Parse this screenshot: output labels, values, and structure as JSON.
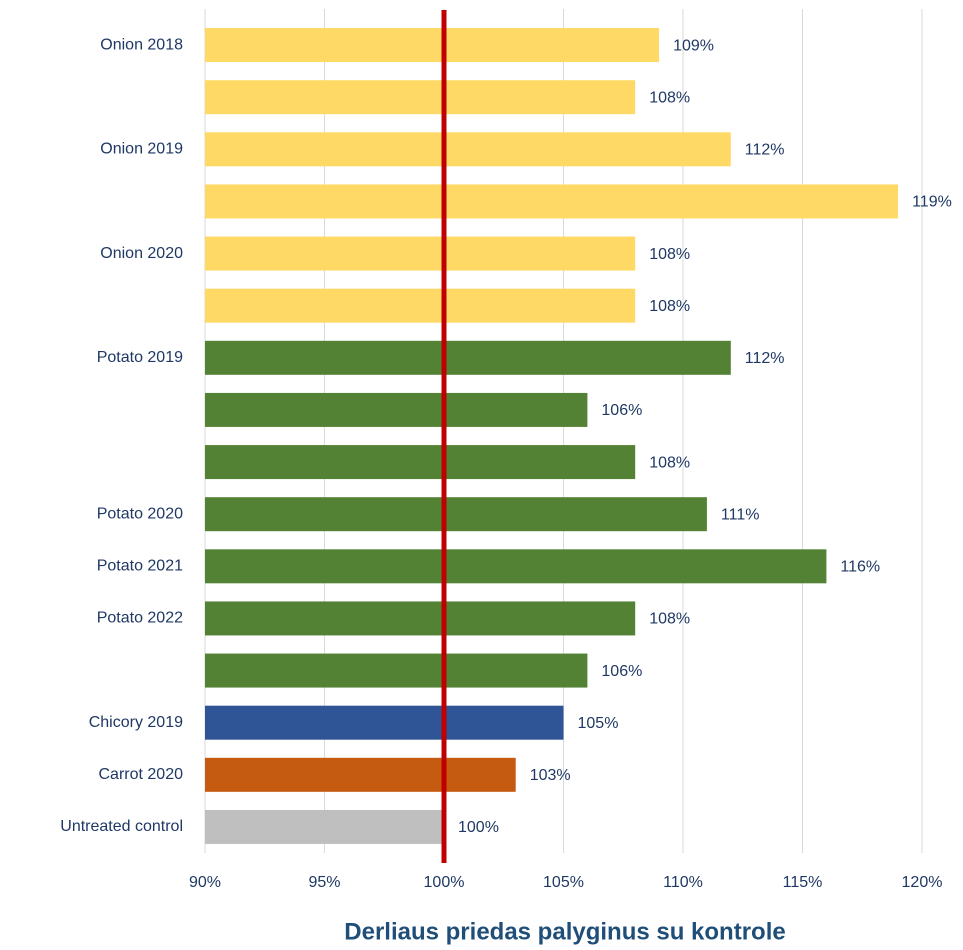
{
  "chart_data": {
    "type": "barh",
    "title": "Derliaus priedas palyginus su kontrole",
    "categories": [
      "Onion 2018",
      null,
      "Onion 2019",
      null,
      "Onion 2020",
      null,
      "Potato 2019",
      null,
      null,
      "Potato 2020",
      "Potato 2021",
      "Potato 2022",
      null,
      "Chicory 2019",
      "Carrot 2020",
      "Untreated control"
    ],
    "values": [
      109,
      108,
      112,
      119,
      108,
      108,
      112,
      106,
      108,
      111,
      116,
      108,
      106,
      105,
      103,
      100
    ],
    "value_labels": [
      "109%",
      "108%",
      "112%",
      "119%",
      "108%",
      "108%",
      "112%",
      "106%",
      "108%",
      "111%",
      "116%",
      "108%",
      "106%",
      "105%",
      "103%",
      "100%"
    ],
    "colors": [
      "#ffd966",
      "#ffd966",
      "#ffd966",
      "#ffd966",
      "#ffd966",
      "#ffd966",
      "#548235",
      "#548235",
      "#548235",
      "#548235",
      "#548235",
      "#548235",
      "#548235",
      "#2f5597",
      "#c55a11",
      "#bfbfbf"
    ],
    "xlim": [
      90,
      120
    ],
    "xticks": [
      {
        "value": 90,
        "label": "90%"
      },
      {
        "value": 95,
        "label": "95%"
      },
      {
        "value": 100,
        "label": "100%"
      },
      {
        "value": 105,
        "label": "105%"
      },
      {
        "value": 110,
        "label": "110%"
      },
      {
        "value": 115,
        "label": "115%"
      },
      {
        "value": 120,
        "label": "120%"
      }
    ],
    "grid": true,
    "reference_line": {
      "value": 100,
      "color": "#c00000"
    }
  }
}
